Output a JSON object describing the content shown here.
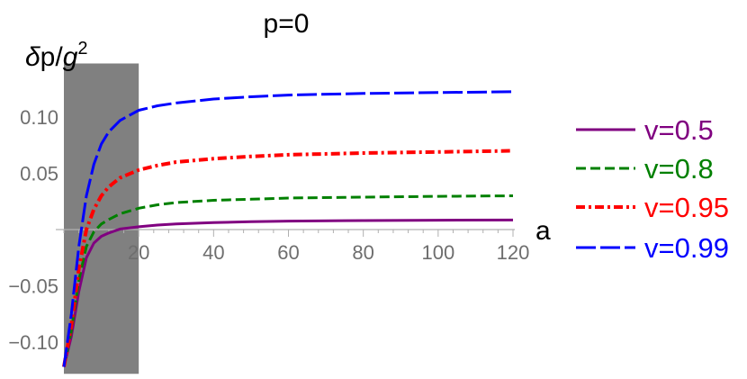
{
  "chart_data": {
    "type": "line",
    "title": "p=0",
    "xlabel": "a",
    "ylabel_parts": {
      "delta": "δ",
      "p": "p/",
      "g": "g",
      "exp": "2"
    },
    "xlim": [
      0,
      120
    ],
    "ylim": [
      -0.125,
      0.13
    ],
    "x_ticks": [
      20,
      40,
      60,
      80,
      100,
      120
    ],
    "x_tick_labels": [
      "20",
      "40",
      "60",
      "80",
      "100",
      "120"
    ],
    "y_ticks": [
      -0.1,
      -0.05,
      0.05,
      0.1
    ],
    "y_tick_labels": [
      "−0.10",
      "−0.05",
      "0.05",
      "0.10"
    ],
    "shaded_region": {
      "x_from": 0,
      "x_to": 20,
      "color": "#808080"
    },
    "legend_position": "right",
    "series": [
      {
        "name": "v=0.5",
        "color": "#800080",
        "dash": "solid",
        "x": [
          0,
          2,
          4,
          6,
          8,
          10,
          12,
          15,
          20,
          25,
          30,
          40,
          50,
          60,
          80,
          100,
          120
        ],
        "y": [
          -0.122,
          -0.095,
          -0.055,
          -0.025,
          -0.012,
          -0.006,
          -0.003,
          0.0005,
          0.0025,
          0.004,
          0.005,
          0.0062,
          0.007,
          0.0075,
          0.008,
          0.0083,
          0.0085
        ]
      },
      {
        "name": "v=0.8",
        "color": "#008000",
        "dash": "dashed",
        "x": [
          0,
          2,
          4,
          6,
          8,
          10,
          12,
          15,
          20,
          25,
          30,
          40,
          50,
          60,
          80,
          100,
          120
        ],
        "y": [
          -0.122,
          -0.09,
          -0.045,
          -0.015,
          -0.002,
          0.005,
          0.009,
          0.014,
          0.019,
          0.022,
          0.024,
          0.026,
          0.027,
          0.028,
          0.0288,
          0.0295,
          0.03
        ]
      },
      {
        "name": "v=0.95",
        "color": "#ff0000",
        "dash": "dashdot",
        "x": [
          0,
          2,
          4,
          6,
          8,
          10,
          12,
          15,
          20,
          25,
          30,
          40,
          50,
          60,
          80,
          100,
          120
        ],
        "y": [
          -0.122,
          -0.085,
          -0.035,
          0.0,
          0.018,
          0.03,
          0.038,
          0.046,
          0.053,
          0.057,
          0.06,
          0.063,
          0.065,
          0.0665,
          0.068,
          0.069,
          0.07
        ]
      },
      {
        "name": "v=0.99",
        "color": "#0000ff",
        "dash": "longdash",
        "x": [
          0,
          2,
          4,
          6,
          8,
          10,
          12,
          15,
          20,
          25,
          30,
          40,
          50,
          60,
          80,
          100,
          120
        ],
        "y": [
          -0.122,
          -0.075,
          -0.015,
          0.03,
          0.058,
          0.076,
          0.087,
          0.097,
          0.106,
          0.11,
          0.1125,
          0.116,
          0.118,
          0.1195,
          0.121,
          0.1218,
          0.1225
        ]
      }
    ]
  }
}
